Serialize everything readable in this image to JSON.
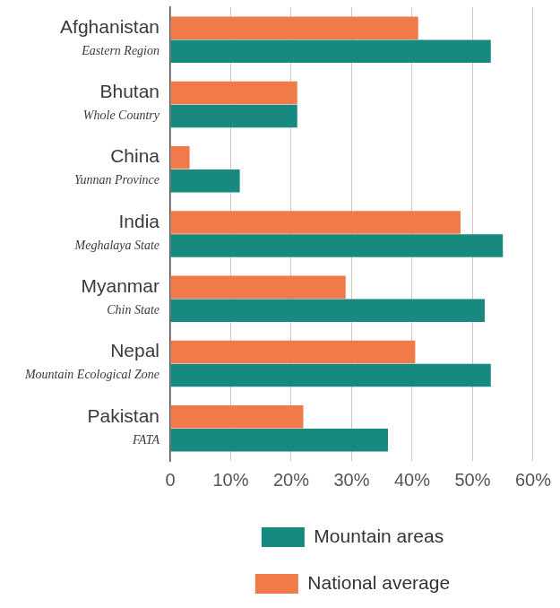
{
  "chart_data": {
    "type": "bar",
    "orientation": "horizontal",
    "categories": [
      [
        "Afghanistan",
        "Eastern Region"
      ],
      [
        "Bhutan",
        "Whole Country"
      ],
      [
        "China",
        "Yunnan Province"
      ],
      [
        "India",
        "Meghalaya State"
      ],
      [
        "Myanmar",
        "Chin State"
      ],
      [
        "Nepal",
        "Mountain Ecological Zone"
      ],
      [
        "Pakistan",
        "FATA"
      ]
    ],
    "series": [
      {
        "name": "National average",
        "color": "#f07a4a",
        "values": [
          41,
          21,
          3.2,
          48,
          29,
          40.5,
          22
        ]
      },
      {
        "name": "Mountain areas",
        "color": "#17897f",
        "values": [
          53,
          21,
          11.5,
          55,
          52,
          53,
          36
        ]
      }
    ],
    "xlim": [
      0,
      60
    ],
    "xticks": [
      0,
      {
        "value": 10,
        "label": "10%"
      },
      {
        "value": 20,
        "label": "20%"
      },
      {
        "value": 30,
        "label": "30%"
      },
      {
        "value": 40,
        "label": "40%"
      },
      {
        "value": 50,
        "label": "50%"
      },
      {
        "value": 60,
        "label": "60%"
      }
    ],
    "grid": true,
    "legend": "bottom"
  }
}
